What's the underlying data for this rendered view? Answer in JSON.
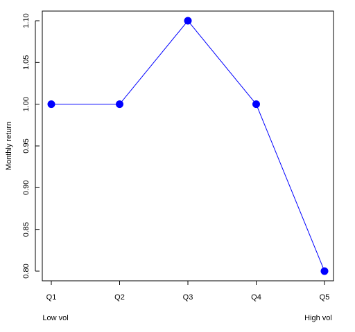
{
  "chart_data": {
    "type": "line",
    "categories": [
      "Q1",
      "Q2",
      "Q3",
      "Q4",
      "Q5"
    ],
    "series": [
      {
        "values": [
          1.0,
          1.0,
          1.1,
          1.0,
          0.8
        ],
        "color": "#0000ff"
      }
    ],
    "xlabel": "",
    "ylabel": "Monthly return",
    "ylim": [
      0.8,
      1.1
    ],
    "yticks": [
      "0.80",
      "0.85",
      "0.90",
      "0.95",
      "1.00",
      "1.05",
      "1.10"
    ],
    "annotations": {
      "left": "Low vol",
      "right": "High vol"
    },
    "grid": false,
    "legend": "none"
  }
}
